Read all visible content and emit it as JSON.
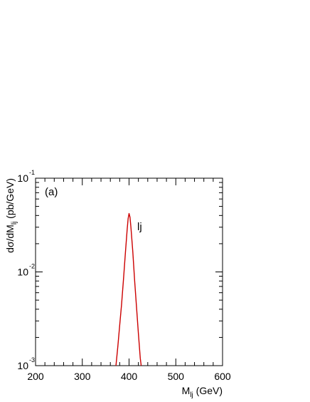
{
  "chart_data": {
    "type": "line",
    "panel_label": "(a)",
    "xlabel": "M",
    "xlabel_sub": "lj",
    "xlabel_unit": " (GeV)",
    "ylabel": "dσ/dM",
    "ylabel_sub": "lj",
    "ylabel_unit": " (pb/GeV)",
    "xlim": [
      200,
      600
    ],
    "ylim": [
      0.001,
      0.1
    ],
    "yscale": "log",
    "x_ticks": [
      {
        "value": 200,
        "label": "200"
      },
      {
        "value": 300,
        "label": "300"
      },
      {
        "value": 400,
        "label": "400"
      },
      {
        "value": 500,
        "label": "500"
      },
      {
        "value": 600,
        "label": "600"
      }
    ],
    "y_ticks": [
      {
        "value": 0.1,
        "base": "10",
        "exp": "-1"
      },
      {
        "value": 0.01,
        "base": "10",
        "exp": "-2"
      },
      {
        "value": 0.001,
        "base": "10",
        "exp": "-3"
      }
    ],
    "grid": false,
    "series": [
      {
        "name": "lj",
        "color": "#cc0000",
        "x": [
          372,
          376,
          380,
          384,
          388,
          392,
          396,
          398,
          400,
          402,
          404,
          408,
          412,
          416,
          420,
          424,
          426
        ],
        "y": [
          0.001,
          0.0016,
          0.0027,
          0.0045,
          0.0082,
          0.0155,
          0.0285,
          0.037,
          0.042,
          0.0385,
          0.03,
          0.0165,
          0.008,
          0.0042,
          0.0022,
          0.0012,
          0.001
        ]
      }
    ]
  }
}
